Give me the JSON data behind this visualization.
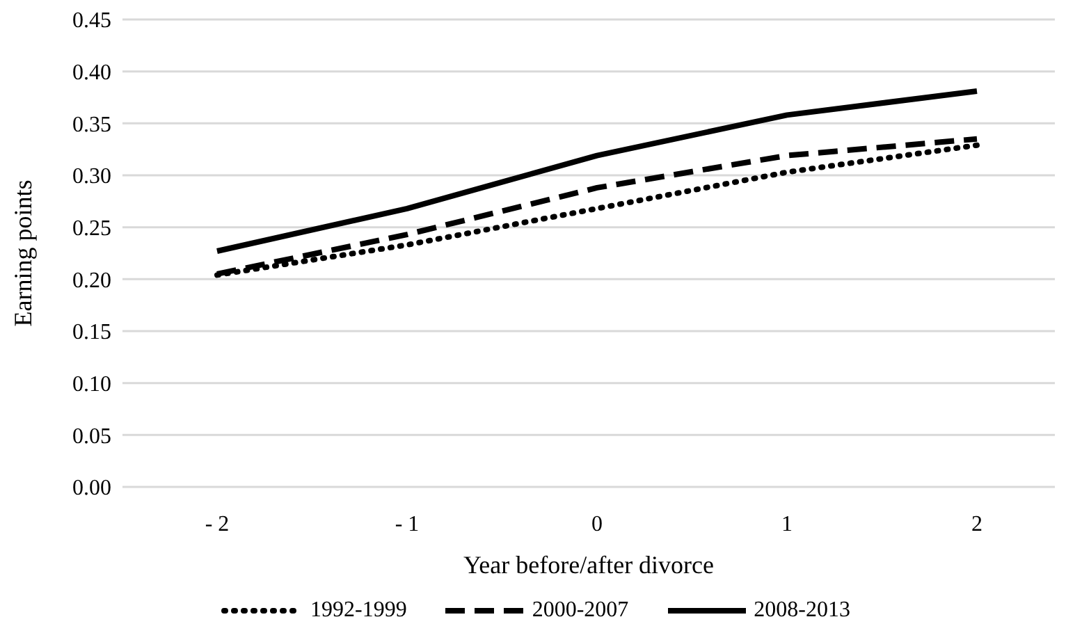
{
  "chart_data": {
    "type": "line",
    "xlabel": "Year before/after divorce",
    "ylabel": "Earning points",
    "categories": [
      "- 2",
      "- 1",
      "0",
      "1",
      "2"
    ],
    "series": [
      {
        "name": "1992-1999",
        "color": "#000000",
        "line_style": "dotted",
        "values": [
          0.204,
          0.233,
          0.268,
          0.303,
          0.329
        ]
      },
      {
        "name": "2000-2007",
        "color": "#000000",
        "line_style": "dashed",
        "values": [
          0.205,
          0.243,
          0.288,
          0.319,
          0.335
        ]
      },
      {
        "name": "2008-2013",
        "color": "#000000",
        "line_style": "solid",
        "values": [
          0.227,
          0.268,
          0.319,
          0.358,
          0.381
        ]
      }
    ],
    "ylim": [
      0,
      0.45
    ],
    "yticks": [
      {
        "value": 0,
        "label": "0.00"
      },
      {
        "value": 0.05,
        "label": "0.05"
      },
      {
        "value": 0.1,
        "label": "0.10"
      },
      {
        "value": 0.15,
        "label": "0.15"
      },
      {
        "value": 0.2,
        "label": "0.20"
      },
      {
        "value": 0.25,
        "label": "0.25"
      },
      {
        "value": 0.3,
        "label": "0.30"
      },
      {
        "value": 0.35,
        "label": "0.35"
      },
      {
        "value": 0.4,
        "label": "0.40"
      },
      {
        "value": 0.45,
        "label": "0.45"
      }
    ],
    "grid": "y",
    "legend": "bottom",
    "marker": "none"
  }
}
